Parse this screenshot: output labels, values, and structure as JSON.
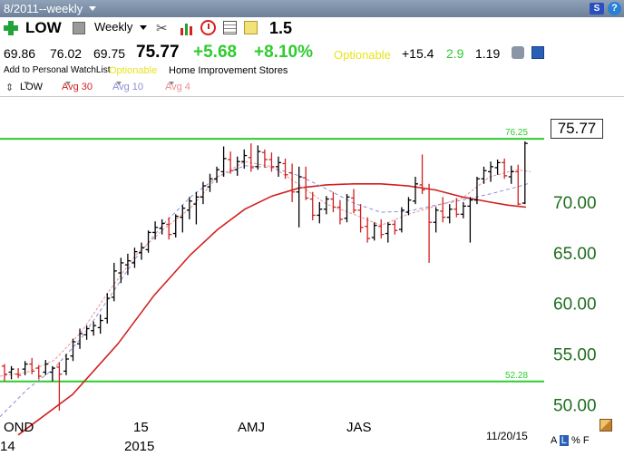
{
  "topbar": {
    "range": "8/2011--weekly",
    "sr_label": "S",
    "help_label": "?"
  },
  "toolbar": {
    "symbol": "LOW",
    "period": "Weekly",
    "ratio": "1.5",
    "icons": [
      "plus-icon",
      "cube-icon",
      "tools-icon",
      "bar-chart-icon",
      "alarm-clock-icon",
      "grid-icon",
      "note-icon"
    ]
  },
  "quote": {
    "open": "69.86",
    "high": "76.02",
    "low": "69.75",
    "last": "75.77",
    "change": "+5.68",
    "change_pct": "+8.10%",
    "optionable": "Optionable",
    "stat1": "+15.4",
    "stat2": "2.9",
    "stat3": "1.19"
  },
  "info": {
    "watchlist": "Add to Personal WatchList",
    "optionable": "Optionable",
    "industry": "Home Improvement Stores"
  },
  "legend": {
    "symbol": "LOW",
    "avg30": "Avg 30",
    "avg10": "Avg 10",
    "avg4": "Avg 4"
  },
  "colors": {
    "avg30": "#d12020",
    "avg10": "#8c8cd8",
    "avg4": "#e89090",
    "up": "#000000",
    "down": "#d12020",
    "line": "#2ecc2e"
  },
  "chart_data": {
    "type": "ohlc",
    "ylim": [
      48.5,
      78.5
    ],
    "yticks": [
      "50.00",
      "55.00",
      "60.00",
      "65.00",
      "70.00"
    ],
    "xlabels": [
      "OND",
      "15",
      "AMJ",
      "JAS"
    ],
    "xlabels_year": [
      "14",
      "2015"
    ],
    "hlines": [
      {
        "label": "76.25",
        "value": 76.25
      },
      {
        "label": "52.28",
        "value": 52.28
      }
    ],
    "last_price": "75.77",
    "end_date": "11/20/15",
    "bars": [
      [
        53.8,
        54.0,
        52.3,
        53.0
      ],
      [
        53.2,
        53.8,
        52.5,
        53.5
      ],
      [
        53.0,
        53.6,
        52.6,
        52.9
      ],
      [
        53.5,
        54.3,
        52.9,
        54.0
      ],
      [
        54.0,
        54.6,
        53.0,
        53.3
      ],
      [
        53.6,
        53.9,
        52.5,
        52.8
      ],
      [
        53.2,
        54.4,
        52.9,
        54.0
      ],
      [
        53.2,
        53.8,
        52.3,
        53.6
      ],
      [
        53.7,
        54.2,
        49.4,
        53.0
      ],
      [
        53.3,
        55.0,
        52.9,
        54.5
      ],
      [
        54.8,
        56.5,
        54.3,
        56.2
      ],
      [
        56.0,
        57.5,
        55.5,
        57.0
      ],
      [
        56.9,
        57.8,
        56.4,
        57.5
      ],
      [
        57.3,
        58.2,
        56.8,
        57.8
      ],
      [
        57.6,
        58.9,
        57.0,
        58.3
      ],
      [
        58.5,
        61.0,
        58.0,
        60.5
      ],
      [
        60.6,
        64.0,
        60.2,
        63.2
      ],
      [
        63.0,
        64.5,
        62.0,
        64.0
      ],
      [
        63.8,
        64.9,
        62.8,
        64.2
      ],
      [
        64.0,
        65.5,
        63.5,
        65.1
      ],
      [
        65.0,
        66.0,
        64.3,
        65.5
      ],
      [
        65.3,
        67.2,
        65.0,
        67.0
      ],
      [
        67.0,
        68.1,
        66.3,
        67.5
      ],
      [
        67.4,
        68.3,
        66.8,
        67.9
      ],
      [
        67.8,
        68.5,
        66.3,
        66.8
      ],
      [
        66.9,
        68.8,
        66.5,
        68.6
      ],
      [
        68.5,
        69.7,
        67.0,
        69.4
      ],
      [
        69.2,
        70.5,
        68.3,
        70.1
      ],
      [
        69.8,
        71.0,
        67.8,
        70.5
      ],
      [
        70.5,
        72.0,
        69.8,
        71.6
      ],
      [
        71.5,
        72.8,
        71.0,
        72.3
      ],
      [
        72.3,
        73.5,
        71.9,
        73.2
      ],
      [
        73.0,
        75.5,
        72.5,
        74.3
      ],
      [
        74.2,
        75.0,
        72.8,
        73.1
      ],
      [
        73.2,
        74.5,
        72.6,
        74.0
      ],
      [
        74.0,
        75.2,
        73.3,
        74.6
      ],
      [
        74.4,
        75.8,
        73.0,
        73.4
      ],
      [
        73.5,
        75.6,
        73.2,
        75.0
      ],
      [
        74.9,
        75.2,
        73.4,
        74.2
      ],
      [
        74.2,
        74.9,
        73.0,
        73.5
      ],
      [
        73.5,
        74.5,
        72.5,
        73.9
      ],
      [
        73.8,
        74.3,
        72.3,
        72.7
      ],
      [
        72.9,
        73.8,
        70.0,
        71.0
      ],
      [
        71.0,
        73.5,
        67.5,
        72.5
      ],
      [
        72.4,
        73.5,
        70.2,
        70.4
      ],
      [
        70.3,
        71.0,
        68.2,
        68.7
      ],
      [
        68.7,
        70.0,
        67.9,
        69.3
      ],
      [
        69.3,
        70.6,
        68.8,
        70.3
      ],
      [
        70.3,
        71.0,
        69.0,
        69.5
      ],
      [
        69.5,
        70.2,
        67.8,
        68.3
      ],
      [
        68.4,
        70.8,
        68.0,
        70.5
      ],
      [
        70.4,
        71.3,
        68.9,
        69.2
      ],
      [
        69.2,
        69.8,
        67.0,
        67.5
      ],
      [
        67.6,
        68.5,
        66.0,
        66.4
      ],
      [
        66.5,
        68.0,
        66.2,
        67.7
      ],
      [
        67.6,
        68.3,
        66.4,
        66.8
      ],
      [
        66.9,
        68.0,
        66.0,
        67.8
      ],
      [
        67.8,
        68.2,
        66.8,
        67.2
      ],
      [
        67.3,
        69.5,
        67.0,
        69.2
      ],
      [
        69.0,
        70.5,
        68.7,
        70.2
      ],
      [
        70.1,
        72.5,
        69.8,
        71.8
      ],
      [
        71.7,
        74.7,
        70.8,
        71.2
      ],
      [
        71.3,
        71.8,
        64.0,
        68.0
      ],
      [
        68.0,
        69.5,
        67.0,
        69.2
      ],
      [
        69.1,
        70.5,
        68.0,
        68.5
      ],
      [
        68.5,
        69.8,
        67.9,
        69.3
      ],
      [
        69.3,
        70.4,
        68.5,
        68.8
      ],
      [
        68.8,
        70.0,
        68.4,
        69.6
      ],
      [
        69.6,
        70.5,
        66.0,
        70.2
      ],
      [
        70.2,
        72.5,
        69.8,
        72.3
      ],
      [
        72.3,
        73.5,
        71.8,
        73.1
      ],
      [
        73.0,
        74.0,
        72.0,
        73.5
      ],
      [
        73.4,
        74.2,
        72.7,
        73.9
      ],
      [
        73.9,
        74.3,
        72.3,
        72.6
      ],
      [
        72.5,
        73.6,
        71.8,
        73.0
      ],
      [
        73.0,
        73.7,
        69.7,
        69.8
      ],
      [
        69.9,
        76.0,
        69.8,
        75.8
      ]
    ],
    "avg30": [
      [
        20,
        47.0
      ],
      [
        80,
        51.0
      ],
      [
        130,
        56.0
      ],
      [
        170,
        60.8
      ],
      [
        210,
        64.8
      ],
      [
        240,
        67.3
      ],
      [
        270,
        69.3
      ],
      [
        300,
        70.6
      ],
      [
        330,
        71.4
      ],
      [
        360,
        71.7
      ],
      [
        390,
        71.8
      ],
      [
        420,
        71.8
      ],
      [
        450,
        71.6
      ],
      [
        480,
        71.2
      ],
      [
        510,
        70.5
      ],
      [
        540,
        70.0
      ],
      [
        560,
        69.7
      ],
      [
        580,
        69.5
      ]
    ],
    "avg10": [
      [
        0,
        48.8
      ],
      [
        30,
        51.5
      ],
      [
        60,
        53.6
      ],
      [
        90,
        56.6
      ],
      [
        120,
        60.5
      ],
      [
        150,
        64.5
      ],
      [
        180,
        67.8
      ],
      [
        210,
        70.5
      ],
      [
        240,
        72.5
      ],
      [
        270,
        73.6
      ],
      [
        300,
        73.4
      ],
      [
        330,
        72.6
      ],
      [
        360,
        71.3
      ],
      [
        390,
        69.9
      ],
      [
        420,
        69.0
      ],
      [
        450,
        69.1
      ],
      [
        480,
        69.7
      ],
      [
        510,
        70.2
      ],
      [
        540,
        70.8
      ],
      [
        570,
        71.5
      ],
      [
        585,
        71.9
      ]
    ],
    "avg4": [
      [
        0,
        52.8
      ],
      [
        30,
        53.2
      ],
      [
        60,
        54.4
      ],
      [
        90,
        57.2
      ],
      [
        120,
        61.2
      ],
      [
        150,
        64.8
      ],
      [
        180,
        67.3
      ],
      [
        210,
        69.4
      ],
      [
        240,
        72.5
      ],
      [
        270,
        74.0
      ],
      [
        300,
        73.5
      ],
      [
        330,
        71.7
      ],
      [
        360,
        69.8
      ],
      [
        390,
        68.8
      ],
      [
        420,
        67.7
      ],
      [
        450,
        68.8
      ],
      [
        480,
        69.6
      ],
      [
        510,
        70.4
      ],
      [
        540,
        72.5
      ],
      [
        570,
        73.2
      ],
      [
        585,
        73.0
      ]
    ]
  },
  "footer": {
    "date": "11/20/15",
    "scale_a": "A",
    "scale_l": "L",
    "scale_pct": "%",
    "scale_f": "F"
  }
}
